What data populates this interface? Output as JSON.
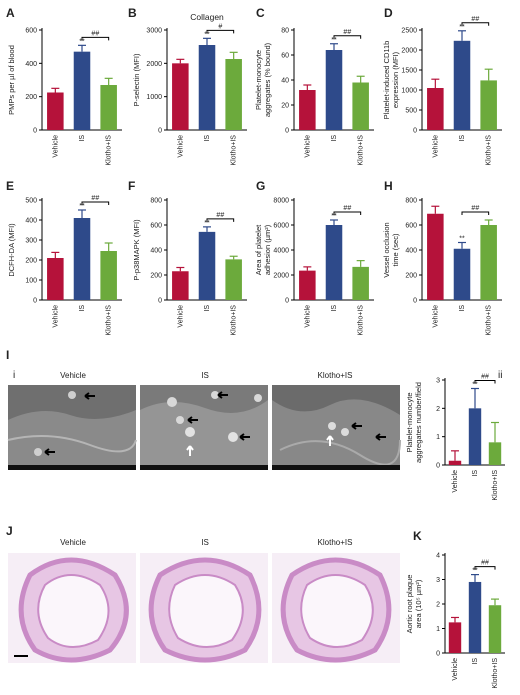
{
  "colors": {
    "vehicle": "#b5123a",
    "is": "#2e4a8a",
    "klotho": "#6caa3c"
  },
  "image_panels": {
    "I": {
      "label": "I",
      "sublabel_i": "i",
      "sublabel_ii": "ii",
      "captions": [
        "Vehicle",
        "IS",
        "Klotho+IS"
      ]
    },
    "J": {
      "label": "J",
      "captions": [
        "Vehicle",
        "IS",
        "Klotho+IS"
      ]
    }
  },
  "chart_data": [
    {
      "id": "A",
      "type": "bar",
      "title": "",
      "categories": [
        "Vehicle",
        "IS",
        "Klotho+IS"
      ],
      "values": [
        225,
        470,
        270
      ],
      "errors": [
        25,
        38,
        40
      ],
      "ylabel": "PMPs per µl of blood",
      "ylim": [
        0,
        600
      ],
      "yticks": [
        "0",
        "200",
        "400",
        "600"
      ],
      "sig_star": "**",
      "sig_bracket": "##"
    },
    {
      "id": "B",
      "type": "bar",
      "title": "Collagen",
      "categories": [
        "Vehicle",
        "IS",
        "Klotho+IS"
      ],
      "values": [
        2000,
        2550,
        2130
      ],
      "errors": [
        120,
        200,
        200
      ],
      "ylabel": "P-selectin (MFI)",
      "ylim": [
        0,
        3000
      ],
      "yticks": [
        "0",
        "1000",
        "2000",
        "3000"
      ],
      "sig_star": "**",
      "sig_bracket": "#"
    },
    {
      "id": "C",
      "type": "bar",
      "title": "",
      "categories": [
        "Vehicle",
        "IS",
        "Klotho+IS"
      ],
      "values": [
        32,
        64,
        38
      ],
      "errors": [
        4,
        5,
        5
      ],
      "ylabel": "Platelet-monocyte aggregates (% bound)",
      "ylim": [
        0,
        80
      ],
      "yticks": [
        "0",
        "20",
        "40",
        "60",
        "80"
      ],
      "sig_star": "**",
      "sig_bracket": "##"
    },
    {
      "id": "D",
      "type": "bar",
      "title": "",
      "categories": [
        "Vehicle",
        "IS",
        "Klotho+IS"
      ],
      "values": [
        1050,
        2230,
        1240
      ],
      "errors": [
        220,
        250,
        280
      ],
      "ylabel": "Platelet-induced CD11b expression (MFI)",
      "ylim": [
        0,
        2500
      ],
      "yticks": [
        "0",
        "500",
        "1000",
        "1500",
        "2000",
        "2500"
      ],
      "sig_star": "**",
      "sig_bracket": "##"
    },
    {
      "id": "E",
      "type": "bar",
      "title": "",
      "categories": [
        "Vehicle",
        "IS",
        "Klotho+IS"
      ],
      "values": [
        210,
        410,
        245
      ],
      "errors": [
        28,
        40,
        40
      ],
      "ylabel": "DCFH-DA (MFI)",
      "ylim": [
        0,
        500
      ],
      "yticks": [
        "0",
        "100",
        "200",
        "300",
        "400",
        "500"
      ],
      "sig_star": "**",
      "sig_bracket": "##"
    },
    {
      "id": "F",
      "type": "bar",
      "title": "",
      "categories": [
        "Vehicle",
        "IS",
        "Klotho+IS"
      ],
      "values": [
        230,
        545,
        325
      ],
      "errors": [
        30,
        40,
        25
      ],
      "ylabel": "P-p38MAPK (MFI)",
      "ylim": [
        0,
        800
      ],
      "yticks": [
        "0",
        "200",
        "400",
        "600",
        "800"
      ],
      "sig_star": "**",
      "sig_bracket": "##"
    },
    {
      "id": "G",
      "type": "bar",
      "title": "",
      "categories": [
        "Vehicle",
        "IS",
        "Klotho+IS"
      ],
      "values": [
        2350,
        6000,
        2650
      ],
      "errors": [
        300,
        400,
        500
      ],
      "ylabel": "Area of platelet adhesion (µm²)",
      "ylim": [
        0,
        8000
      ],
      "yticks": [
        "0",
        "2000",
        "4000",
        "6000",
        "8000"
      ],
      "sig_star": "**",
      "sig_bracket": "##"
    },
    {
      "id": "H",
      "type": "bar",
      "title": "",
      "categories": [
        "Vehicle",
        "IS",
        "Klotho+IS"
      ],
      "values": [
        690,
        410,
        600
      ],
      "errors": [
        60,
        50,
        40
      ],
      "ylabel": "Vessel occlusion time (sec)",
      "ylim": [
        0,
        800
      ],
      "yticks": [
        "0",
        "200",
        "400",
        "600",
        "800"
      ],
      "sig_star": "**",
      "sig_bracket": "##"
    },
    {
      "id": "Iii",
      "type": "bar",
      "title": "",
      "categories": [
        "Vehicle",
        "IS",
        "Klotho+IS"
      ],
      "values": [
        0.15,
        2.0,
        0.8
      ],
      "errors": [
        0.35,
        0.7,
        0.7
      ],
      "ylabel": "Platelet-monocyte aggregates number/field",
      "ylim": [
        0,
        3
      ],
      "yticks": [
        "0",
        "1",
        "2",
        "3"
      ],
      "sig_star": "**",
      "sig_bracket": "##"
    },
    {
      "id": "K",
      "type": "bar",
      "title": "",
      "categories": [
        "Vehicle",
        "IS",
        "Klotho+IS"
      ],
      "values": [
        1.25,
        2.9,
        1.95
      ],
      "errors": [
        0.2,
        0.3,
        0.25
      ],
      "ylabel": "Aortic root plaque area (10⁵ µm²)",
      "ylim": [
        0,
        4
      ],
      "yticks": [
        "0",
        "1",
        "2",
        "3",
        "4"
      ],
      "sig_star": "**",
      "sig_bracket": "##"
    }
  ]
}
